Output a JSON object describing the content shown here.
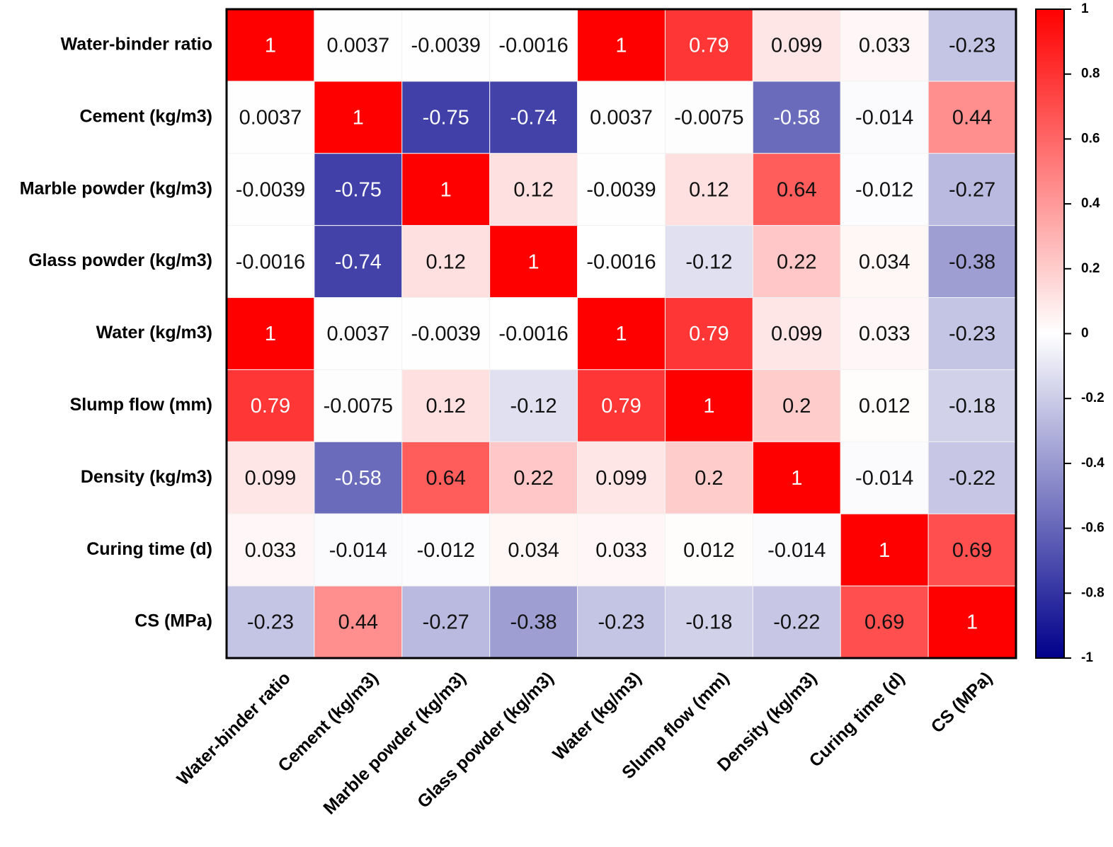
{
  "chart_data": {
    "type": "heatmap",
    "categories": [
      "Water-binder ratio",
      "Cement (kg/m3)",
      "Marble powder (kg/m3)",
      "Glass powder (kg/m3)",
      "Water (kg/m3)",
      "Slump flow (mm)",
      "Density (kg/m3)",
      "Curing time (d)",
      "CS (MPa)"
    ],
    "values": [
      [
        1,
        0.0037,
        -0.0039,
        -0.0016,
        1,
        0.79,
        0.099,
        0.033,
        -0.23
      ],
      [
        0.0037,
        1,
        -0.75,
        -0.74,
        0.0037,
        -0.0075,
        -0.58,
        -0.014,
        0.44
      ],
      [
        -0.0039,
        -0.75,
        1,
        0.12,
        -0.0039,
        0.12,
        0.64,
        -0.012,
        -0.27
      ],
      [
        -0.0016,
        -0.74,
        0.12,
        1,
        -0.0016,
        -0.12,
        0.22,
        0.034,
        -0.38
      ],
      [
        1,
        0.0037,
        -0.0039,
        -0.0016,
        1,
        0.79,
        0.099,
        0.033,
        -0.23
      ],
      [
        0.79,
        -0.0075,
        0.12,
        -0.12,
        0.79,
        1,
        0.2,
        0.012,
        -0.18
      ],
      [
        0.099,
        -0.58,
        0.64,
        0.22,
        0.099,
        0.2,
        1,
        -0.014,
        -0.22
      ],
      [
        0.033,
        -0.014,
        -0.012,
        0.034,
        0.033,
        0.012,
        -0.014,
        1,
        0.69
      ],
      [
        -0.23,
        0.44,
        -0.27,
        -0.38,
        -0.23,
        -0.18,
        -0.22,
        0.69,
        1
      ]
    ],
    "colormap": [
      "#00008b",
      "#ffffff",
      "#ff0000"
    ],
    "zlim": [
      -1,
      1
    ],
    "zticks": [
      -1,
      -0.8,
      -0.6,
      -0.4,
      -0.2,
      0,
      0.2,
      0.4,
      0.6,
      0.8,
      1
    ]
  }
}
